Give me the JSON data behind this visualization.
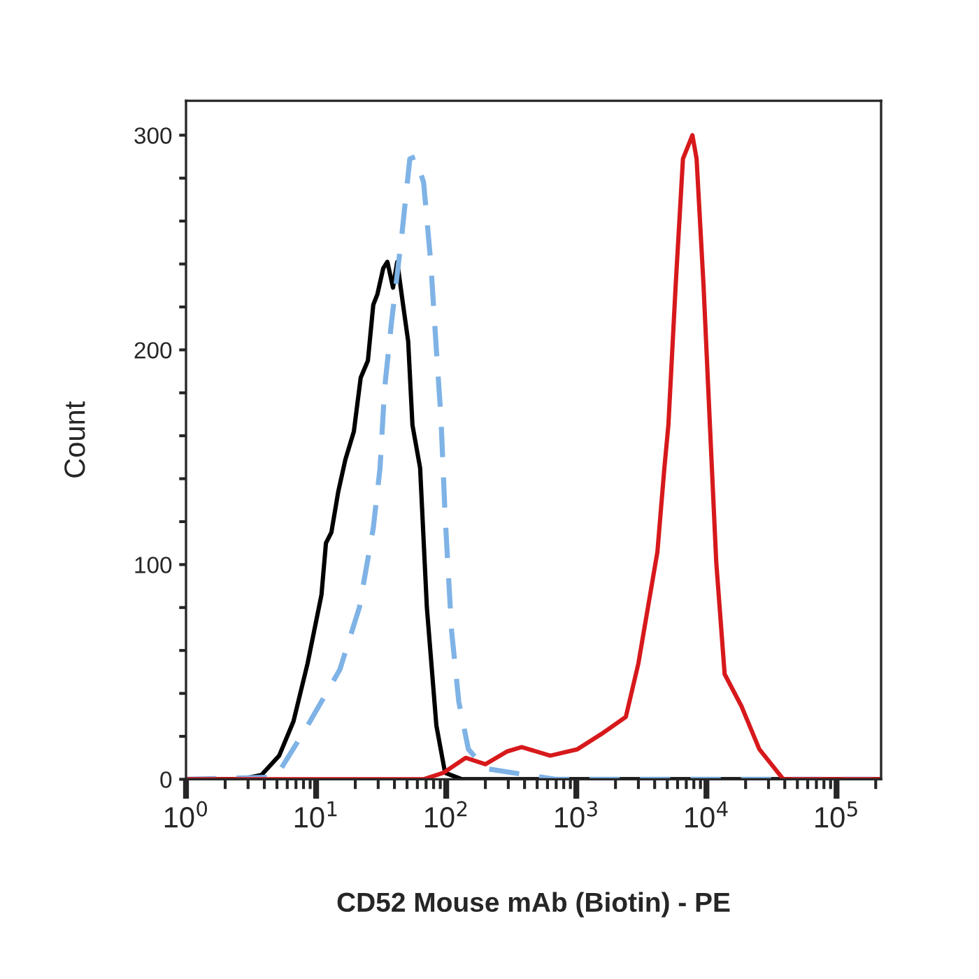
{
  "chart_data": {
    "type": "line",
    "xlabel": "CD52 Mouse mAb (Biotin) - PE",
    "ylabel": "Count",
    "log": "x",
    "xlim": [
      1,
      220000
    ],
    "xticks": [
      {
        "value": 1,
        "label": "10$^{0}$"
      },
      {
        "value": 10,
        "label": "10$^{1}$"
      },
      {
        "value": 100,
        "label": "10$^{2}$"
      },
      {
        "value": 1000,
        "label": "10$^{3}$"
      },
      {
        "value": 10000,
        "label": "10$^{4}$"
      },
      {
        "value": 100000,
        "label": "10$^{5}$"
      }
    ],
    "ylim": [
      0,
      316
    ],
    "yticks": [
      0,
      {
        "value": 20,
        "label": null
      },
      {
        "value": 40,
        "label": null
      },
      {
        "value": 60,
        "label": null
      },
      {
        "value": 80,
        "label": null
      },
      100,
      {
        "value": 120,
        "label": null
      },
      {
        "value": 140,
        "label": null
      },
      {
        "value": 160,
        "label": null
      },
      {
        "value": 180,
        "label": null
      },
      200,
      {
        "value": 220,
        "label": null
      },
      {
        "value": 240,
        "label": null
      },
      {
        "value": 260,
        "label": null
      },
      {
        "value": 280,
        "label": null
      },
      300
    ],
    "grid": false,
    "legend": false,
    "marker": "none",
    "series": [
      {
        "color": "#000000",
        "line_style": "solid",
        "x": [
          1,
          2.6,
          3.8,
          5.2,
          6.7,
          8.6,
          11,
          11.9,
          13.1,
          14.8,
          16.8,
          19.5,
          22,
          25,
          27.5,
          29.6,
          32.8,
          35.3,
          39,
          42,
          46.6,
          51,
          55,
          63,
          71,
          84,
          98,
          132,
          220000
        ],
        "values": [
          0,
          0,
          2,
          11,
          27,
          54,
          86,
          110,
          115,
          134,
          149,
          162,
          187,
          195,
          221,
          226,
          238,
          241,
          229,
          241,
          221,
          204,
          165,
          145,
          80,
          25,
          3,
          0,
          0
        ]
      },
      {
        "color": "#7fb3e6",
        "line_style": "dashed",
        "x": [
          1,
          4.9,
          8.6,
          15.2,
          21.5,
          27.5,
          31,
          33.6,
          38,
          45.3,
          52.5,
          58,
          67,
          76,
          84,
          91,
          98,
          110,
          125,
          148,
          200,
          420,
          690,
          220000
        ],
        "values": [
          0,
          1,
          25,
          51,
          80,
          117,
          145,
          182,
          213,
          252,
          289,
          290,
          278,
          241,
          200,
          169,
          123,
          69,
          36,
          14,
          5,
          2,
          0,
          0
        ]
      },
      {
        "color": "#d7191c",
        "line_style": "solid",
        "x": [
          1,
          67,
          95,
          141,
          200,
          295,
          380,
          630,
          1020,
          1550,
          2400,
          3000,
          3550,
          4200,
          4750,
          5100,
          5800,
          6600,
          7800,
          8400,
          9500,
          10800,
          11900,
          13800,
          18600,
          25500,
          39000,
          220000
        ],
        "values": [
          0,
          0,
          3,
          10,
          7,
          13,
          15,
          11,
          14,
          21,
          29,
          54,
          80,
          106,
          145,
          165,
          230,
          289,
          300,
          289,
          230,
          156,
          101,
          49,
          34,
          14,
          0,
          0
        ]
      }
    ]
  }
}
